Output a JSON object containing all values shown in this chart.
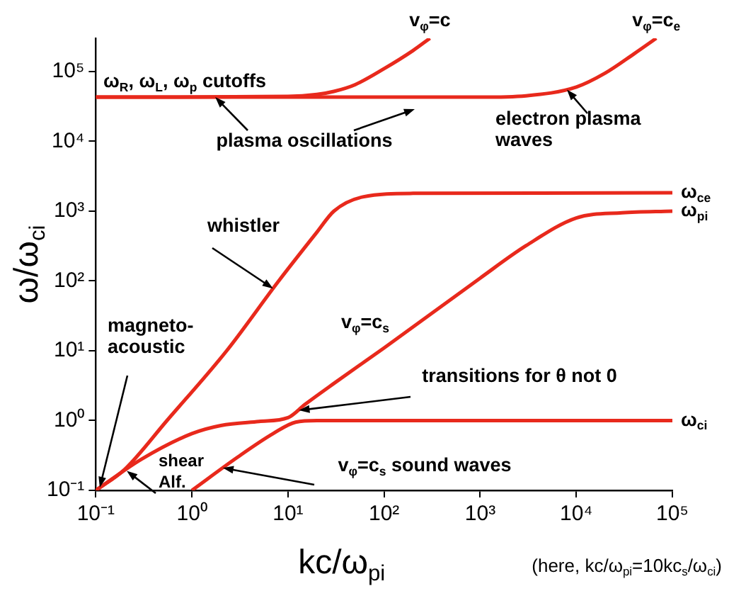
{
  "chart_data": {
    "type": "line",
    "xlabel": "kc/ω$_{pi}$",
    "ylabel": "ω/ω$_{ci}$",
    "log": "xy",
    "grid": false,
    "marker": "none",
    "line_style": "solid",
    "xlim": [
      0.1,
      100000
    ],
    "ylim": [
      0.1,
      300000
    ],
    "xticks": [
      {
        "value": 0.1,
        "label": "10⁻¹"
      },
      {
        "value": 1,
        "label": "10⁰"
      },
      {
        "value": 10,
        "label": "10¹"
      },
      {
        "value": 100,
        "label": "10²"
      },
      {
        "value": 1000,
        "label": "10³"
      },
      {
        "value": 10000,
        "label": "10⁴"
      },
      {
        "value": 100000,
        "label": "10⁵"
      }
    ],
    "yticks": [
      {
        "value": 0.1,
        "label": "10⁻¹"
      },
      {
        "value": 1,
        "label": "10⁰"
      },
      {
        "value": 10,
        "label": "10¹"
      },
      {
        "value": 100,
        "label": "10²"
      },
      {
        "value": 1000,
        "label": "10³"
      },
      {
        "value": 10000,
        "label": "10⁴"
      },
      {
        "value": 100000,
        "label": "10⁵"
      }
    ],
    "series": [
      {
        "color": "#e8291c",
        "x": [
          0.1,
          10,
          20,
          30,
          50,
          100,
          200,
          300
        ],
        "values": [
          43000,
          44000,
          47000,
          52000,
          65000,
          110000,
          200000,
          300000
        ]
      },
      {
        "color": "#e8291c",
        "x": [
          0.1,
          1000,
          3000,
          10000,
          20000,
          40000,
          68000
        ],
        "values": [
          43000,
          43000,
          45000,
          60000,
          95000,
          180000,
          300000
        ]
      },
      {
        "color": "#e8291c",
        "x": [
          0.1,
          0.2,
          0.55,
          2.3,
          8,
          20,
          30,
          60,
          200,
          100000
        ],
        "values": [
          0.1,
          0.2,
          1,
          10,
          100,
          500,
          1000,
          1600,
          1800,
          1836
        ]
      },
      {
        "color": "#e8291c",
        "x": [
          0.1,
          0.3,
          1,
          2,
          5,
          10,
          15,
          30,
          100,
          1000,
          3000,
          10000,
          30000,
          100000
        ],
        "values": [
          0.1,
          0.28,
          0.65,
          0.85,
          0.97,
          1.1,
          1.7,
          3.4,
          11,
          110,
          320,
          800,
          950,
          1000
        ]
      },
      {
        "color": "#e8291c",
        "x": [
          1,
          3,
          7,
          12,
          20,
          100000
        ],
        "values": [
          0.1,
          0.3,
          0.65,
          0.95,
          1,
          1
        ]
      }
    ],
    "annotations": [
      {
        "text": "v$_{φ}$=c",
        "x": 300,
        "y": 300000
      },
      {
        "text": "v$_{φ}$=c$_{e}$",
        "x": 68000,
        "y": 300000
      },
      {
        "text": "ω$_{ce}$",
        "x": 100000,
        "y": 1836
      },
      {
        "text": "ω$_{pi}$",
        "x": 100000,
        "y": 1000
      },
      {
        "text": "ω$_{ci}$",
        "x": 100000,
        "y": 1
      },
      "ω$_{R}$, ω$_{L}$, ω$_{p}$ cutoffs",
      {
        "text": "plasma oscillations",
        "x": 1.75,
        "y": 43000
      },
      {
        "text": "electron plasma\nwaves",
        "x": 8000,
        "y": 55000
      },
      {
        "text": "whistler",
        "x": 7,
        "y": 78
      },
      "v$_{φ}$=c$_{s}$",
      {
        "text": "magneto-\nacoustic",
        "x": 0.11,
        "y": 0.11
      },
      {
        "text": "transitions for θ not 0",
        "x": 13,
        "y": 1.4
      },
      {
        "text": "shear\nAlf.",
        "x": 0.21,
        "y": 0.19
      },
      {
        "text": "v$_{φ}$=c$_{s}$ sound waves",
        "x": 2.1,
        "y": 0.21
      },
      "(here, kc/ω$_{pi}$=10kc$_{s}$/ω$_{ci}$)"
    ]
  }
}
